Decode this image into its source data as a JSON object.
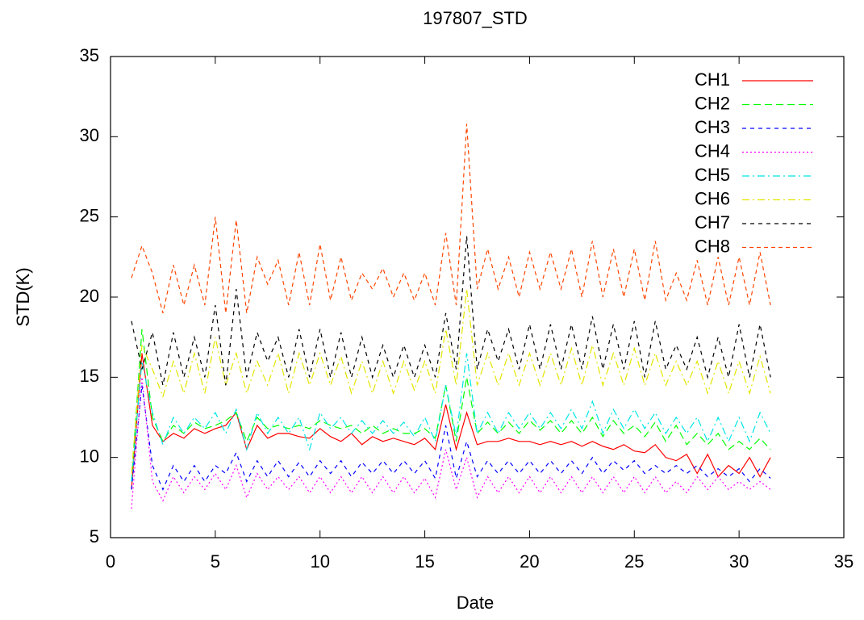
{
  "chart_data": {
    "type": "line",
    "title": "197807_STD",
    "x_label": "Date",
    "y_label": "STD(K)",
    "xlim": [
      0,
      35
    ],
    "xticks": [
      0,
      5,
      10,
      15,
      20,
      25,
      30,
      35
    ],
    "ylim": [
      5,
      35
    ],
    "yticks": [
      5,
      10,
      15,
      20,
      25,
      30,
      35
    ],
    "legend": "top-right",
    "x": [
      1,
      1.5,
      2,
      2.5,
      3,
      3.5,
      4,
      4.5,
      5,
      5.5,
      6,
      6.5,
      7,
      7.5,
      8,
      8.5,
      9,
      9.5,
      10,
      10.5,
      11,
      11.5,
      12,
      12.5,
      13,
      13.5,
      14,
      14.5,
      15,
      15.5,
      16,
      16.5,
      17,
      17.5,
      18,
      18.5,
      19,
      19.5,
      20,
      20.5,
      21,
      21.5,
      22,
      22.5,
      23,
      23.5,
      24,
      24.5,
      25,
      25.5,
      26,
      26.5,
      27,
      27.5,
      28,
      28.5,
      29,
      29.5,
      30,
      30.5,
      31,
      31.5
    ],
    "series": [
      {
        "name": "CH1",
        "color": "#ff0000",
        "values": [
          8.0,
          16.5,
          12.0,
          11.0,
          11.5,
          11.2,
          11.8,
          11.5,
          11.8,
          12.0,
          12.8,
          10.5,
          12.0,
          11.2,
          11.5,
          11.5,
          11.3,
          11.2,
          11.8,
          11.3,
          11.0,
          11.5,
          10.8,
          11.3,
          11.0,
          11.2,
          11.0,
          10.8,
          11.2,
          10.5,
          13.3,
          10.5,
          12.8,
          10.8,
          11.0,
          11.0,
          11.2,
          11.0,
          11.0,
          10.8,
          11.0,
          10.8,
          11.0,
          10.7,
          11.0,
          10.7,
          10.5,
          10.8,
          10.4,
          10.3,
          10.8,
          10.0,
          9.8,
          10.2,
          9.0,
          10.2,
          8.8,
          9.5,
          9.0,
          10.0,
          8.8,
          10.0
        ]
      },
      {
        "name": "CH2",
        "color": "#00ff00",
        "values": [
          8.5,
          18.0,
          12.5,
          11.0,
          12.0,
          11.5,
          12.2,
          11.8,
          12.0,
          12.3,
          12.8,
          11.0,
          12.5,
          11.8,
          12.0,
          11.8,
          12.0,
          11.8,
          12.3,
          12.0,
          11.8,
          12.0,
          11.5,
          12.0,
          11.5,
          11.8,
          11.5,
          11.5,
          11.8,
          11.2,
          14.5,
          11.0,
          15.0,
          11.5,
          12.2,
          11.5,
          12.2,
          11.5,
          12.3,
          11.7,
          12.3,
          11.5,
          12.3,
          11.5,
          12.5,
          11.3,
          12.3,
          11.5,
          12.0,
          11.3,
          12.2,
          11.0,
          12.0,
          10.8,
          11.5,
          10.8,
          11.5,
          10.5,
          11.0,
          10.5,
          11.2,
          10.5
        ]
      },
      {
        "name": "CH3",
        "color": "#0000ff",
        "values": [
          8.0,
          14.5,
          9.5,
          8.0,
          9.5,
          8.5,
          9.5,
          8.5,
          9.5,
          9.0,
          10.3,
          8.5,
          9.8,
          8.8,
          9.8,
          8.8,
          9.7,
          8.8,
          9.8,
          9.0,
          9.8,
          8.8,
          9.7,
          9.0,
          9.8,
          9.0,
          9.8,
          9.0,
          9.8,
          8.7,
          12.0,
          8.7,
          11.0,
          8.8,
          9.8,
          9.0,
          9.8,
          9.0,
          9.8,
          9.0,
          9.8,
          9.0,
          9.8,
          9.0,
          10.0,
          9.0,
          9.8,
          9.2,
          9.8,
          9.0,
          9.5,
          9.0,
          9.5,
          9.0,
          9.5,
          8.8,
          9.3,
          8.8,
          9.3,
          8.5,
          9.3,
          8.7
        ]
      },
      {
        "name": "CH4",
        "color": "#ff00ff",
        "values": [
          6.8,
          15.0,
          8.5,
          7.3,
          8.8,
          7.8,
          8.8,
          8.0,
          9.0,
          8.0,
          9.5,
          7.5,
          9.0,
          8.0,
          8.8,
          8.0,
          8.8,
          7.8,
          8.8,
          7.8,
          8.8,
          7.8,
          8.8,
          7.8,
          8.8,
          7.8,
          8.8,
          7.8,
          8.7,
          7.5,
          10.5,
          8.0,
          10.0,
          7.5,
          8.8,
          7.8,
          8.8,
          7.8,
          8.8,
          7.8,
          8.8,
          7.8,
          8.8,
          7.8,
          8.8,
          7.8,
          8.8,
          7.8,
          8.8,
          7.8,
          8.8,
          7.8,
          8.5,
          7.8,
          8.8,
          8.0,
          8.8,
          8.0,
          8.5,
          8.0,
          8.5,
          8.0
        ]
      },
      {
        "name": "CH5",
        "color": "#00e5e5",
        "values": [
          8.5,
          16.0,
          12.8,
          10.8,
          12.5,
          11.5,
          12.5,
          11.8,
          12.8,
          11.5,
          13.0,
          10.5,
          12.8,
          11.5,
          12.5,
          11.5,
          12.5,
          10.5,
          12.8,
          11.8,
          12.5,
          11.5,
          12.3,
          11.5,
          12.3,
          11.5,
          12.2,
          11.3,
          12.5,
          11.0,
          14.5,
          11.3,
          16.5,
          11.5,
          12.8,
          11.5,
          12.8,
          11.8,
          12.8,
          11.8,
          12.8,
          11.8,
          13.0,
          11.8,
          13.5,
          11.5,
          13.0,
          11.8,
          13.0,
          11.8,
          12.8,
          11.5,
          12.5,
          11.5,
          12.5,
          11.0,
          12.5,
          11.0,
          12.5,
          11.0,
          12.8,
          11.5
        ]
      },
      {
        "name": "CH6",
        "color": "#e5e500",
        "values": [
          9.0,
          17.0,
          15.5,
          13.8,
          16.0,
          14.0,
          16.5,
          14.0,
          17.5,
          14.5,
          16.5,
          14.0,
          16.0,
          14.5,
          16.5,
          14.0,
          16.5,
          14.5,
          16.5,
          14.5,
          16.3,
          14.0,
          16.0,
          14.0,
          16.0,
          14.0,
          16.0,
          14.2,
          16.0,
          14.0,
          18.0,
          14.5,
          20.5,
          14.5,
          16.5,
          14.5,
          16.5,
          14.5,
          16.5,
          14.5,
          16.5,
          14.5,
          16.8,
          14.5,
          17.0,
          14.5,
          16.5,
          14.5,
          16.8,
          14.5,
          16.5,
          14.5,
          16.0,
          14.5,
          16.0,
          14.0,
          16.0,
          14.0,
          16.0,
          14.0,
          16.3,
          14.0
        ]
      },
      {
        "name": "CH7",
        "color": "#000000",
        "values": [
          18.5,
          15.5,
          17.8,
          14.5,
          17.8,
          15.0,
          17.5,
          15.0,
          19.5,
          14.5,
          20.5,
          15.0,
          17.8,
          16.0,
          17.5,
          15.0,
          18.0,
          15.0,
          18.0,
          15.0,
          17.8,
          15.0,
          17.5,
          15.0,
          17.0,
          15.0,
          17.0,
          15.0,
          17.0,
          15.0,
          19.0,
          15.5,
          23.8,
          15.5,
          18.0,
          16.0,
          18.0,
          15.5,
          18.3,
          15.5,
          18.3,
          15.5,
          18.3,
          15.5,
          18.8,
          15.5,
          18.3,
          15.5,
          18.5,
          15.0,
          18.5,
          15.5,
          17.0,
          15.5,
          17.5,
          15.0,
          17.5,
          15.0,
          18.3,
          15.0,
          18.3,
          15.0
        ]
      },
      {
        "name": "CH8",
        "color": "#ff4500",
        "values": [
          21.2,
          23.2,
          21.5,
          19.0,
          22.0,
          19.5,
          22.0,
          19.5,
          25.0,
          19.0,
          24.8,
          19.0,
          22.5,
          20.8,
          22.3,
          19.5,
          22.8,
          19.5,
          23.3,
          19.8,
          22.5,
          19.8,
          21.5,
          20.5,
          21.8,
          20.0,
          21.5,
          19.8,
          21.5,
          19.5,
          24.0,
          19.5,
          30.8,
          20.5,
          23.0,
          20.5,
          22.5,
          20.0,
          22.8,
          20.5,
          22.8,
          20.5,
          23.0,
          20.0,
          23.5,
          20.0,
          23.0,
          20.0,
          23.0,
          19.8,
          23.5,
          19.8,
          21.5,
          19.8,
          22.3,
          19.5,
          22.5,
          19.5,
          22.5,
          19.5,
          22.8,
          19.5
        ]
      }
    ]
  }
}
